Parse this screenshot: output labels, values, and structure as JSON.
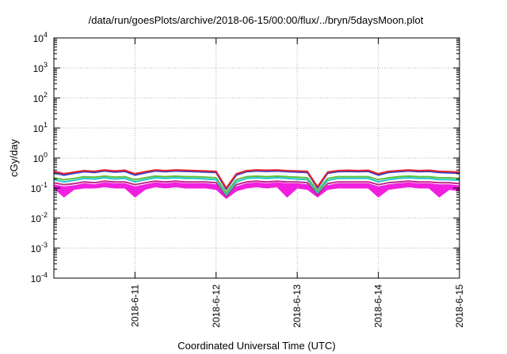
{
  "chart_data": {
    "type": "line",
    "title": "/data/run/goesPlots/archive/2018-06-15/00:00/flux/../bryn/5daysMoon.plot",
    "xlabel": "Coordinated Universal Time (UTC)",
    "ylabel": "cGy/day",
    "y_scale": "log",
    "ylim": [
      0.0001,
      10000
    ],
    "y_ticks": [
      {
        "base": "10",
        "exp": "4"
      },
      {
        "base": "10",
        "exp": "3"
      },
      {
        "base": "10",
        "exp": "2"
      },
      {
        "base": "10",
        "exp": "1"
      },
      {
        "base": "10",
        "exp": "0"
      },
      {
        "base": "10",
        "exp": "-1"
      },
      {
        "base": "10",
        "exp": "-2"
      },
      {
        "base": "10",
        "exp": "-3"
      },
      {
        "base": "10",
        "exp": "-4"
      }
    ],
    "xlim": [
      "2018-06-10",
      "2018-06-15"
    ],
    "x_ticks": [
      "2018-6-11",
      "2018-6-12",
      "2018-6-13",
      "2018-6-14",
      "2018-6-15"
    ],
    "grid": true,
    "x": [
      "2018-06-10T00:00",
      "2018-06-10T03:00",
      "2018-06-10T06:00",
      "2018-06-10T09:00",
      "2018-06-10T12:00",
      "2018-06-10T15:00",
      "2018-06-10T18:00",
      "2018-06-10T21:00",
      "2018-06-11T00:00",
      "2018-06-11T03:00",
      "2018-06-11T06:00",
      "2018-06-11T09:00",
      "2018-06-11T12:00",
      "2018-06-11T15:00",
      "2018-06-11T18:00",
      "2018-06-11T21:00",
      "2018-06-12T00:00",
      "2018-06-12T03:00",
      "2018-06-12T06:00",
      "2018-06-12T09:00",
      "2018-06-12T12:00",
      "2018-06-12T15:00",
      "2018-06-12T18:00",
      "2018-06-12T21:00",
      "2018-06-13T00:00",
      "2018-06-13T03:00",
      "2018-06-13T06:00",
      "2018-06-13T09:00",
      "2018-06-13T12:00",
      "2018-06-13T15:00",
      "2018-06-13T18:00",
      "2018-06-13T21:00",
      "2018-06-14T00:00",
      "2018-06-14T03:00",
      "2018-06-14T06:00",
      "2018-06-14T09:00",
      "2018-06-14T12:00",
      "2018-06-14T15:00",
      "2018-06-14T18:00",
      "2018-06-14T21:00",
      "2018-06-15T00:00"
    ],
    "series": [
      {
        "color": "#e8202a",
        "values": [
          0.36,
          0.3,
          0.34,
          0.38,
          0.36,
          0.4,
          0.37,
          0.39,
          0.3,
          0.35,
          0.4,
          0.38,
          0.4,
          0.39,
          0.38,
          0.37,
          0.36,
          0.1,
          0.3,
          0.38,
          0.4,
          0.39,
          0.4,
          0.38,
          0.37,
          0.36,
          0.11,
          0.34,
          0.38,
          0.39,
          0.38,
          0.39,
          0.3,
          0.36,
          0.38,
          0.4,
          0.38,
          0.39,
          0.36,
          0.35,
          0.34
        ]
      },
      {
        "color": "#2a44d8",
        "values": [
          0.32,
          0.27,
          0.31,
          0.35,
          0.33,
          0.37,
          0.34,
          0.36,
          0.27,
          0.32,
          0.37,
          0.35,
          0.37,
          0.36,
          0.35,
          0.34,
          0.33,
          0.09,
          0.27,
          0.35,
          0.37,
          0.36,
          0.37,
          0.35,
          0.34,
          0.33,
          0.1,
          0.31,
          0.35,
          0.36,
          0.35,
          0.36,
          0.27,
          0.33,
          0.35,
          0.37,
          0.35,
          0.36,
          0.33,
          0.32,
          0.31
        ]
      },
      {
        "color": "#5fbf3a",
        "values": [
          0.22,
          0.19,
          0.21,
          0.24,
          0.23,
          0.25,
          0.23,
          0.24,
          0.19,
          0.22,
          0.25,
          0.24,
          0.25,
          0.24,
          0.24,
          0.23,
          0.22,
          0.07,
          0.19,
          0.24,
          0.25,
          0.24,
          0.25,
          0.24,
          0.23,
          0.22,
          0.08,
          0.21,
          0.24,
          0.24,
          0.24,
          0.24,
          0.19,
          0.22,
          0.24,
          0.25,
          0.24,
          0.24,
          0.22,
          0.22,
          0.21
        ]
      },
      {
        "color": "#22c7cf",
        "values": [
          0.19,
          0.16,
          0.18,
          0.21,
          0.2,
          0.22,
          0.2,
          0.21,
          0.16,
          0.19,
          0.22,
          0.21,
          0.22,
          0.21,
          0.21,
          0.2,
          0.19,
          0.06,
          0.16,
          0.21,
          0.22,
          0.21,
          0.22,
          0.21,
          0.2,
          0.19,
          0.07,
          0.18,
          0.21,
          0.21,
          0.21,
          0.21,
          0.16,
          0.19,
          0.21,
          0.22,
          0.21,
          0.21,
          0.19,
          0.19,
          0.18
        ]
      },
      {
        "color": "#c2268a",
        "values": [
          0.15,
          0.13,
          0.14,
          0.16,
          0.15,
          0.17,
          0.16,
          0.16,
          0.13,
          0.15,
          0.17,
          0.16,
          0.17,
          0.16,
          0.16,
          0.16,
          0.15,
          0.05,
          0.13,
          0.16,
          0.17,
          0.16,
          0.17,
          0.16,
          0.16,
          0.15,
          0.06,
          0.14,
          0.16,
          0.16,
          0.16,
          0.16,
          0.13,
          0.15,
          0.16,
          0.17,
          0.16,
          0.16,
          0.15,
          0.15,
          0.14
        ]
      }
    ],
    "band": {
      "color": "#f21fe0",
      "upper": [
        0.13,
        0.11,
        0.12,
        0.14,
        0.13,
        0.15,
        0.14,
        0.14,
        0.11,
        0.13,
        0.15,
        0.14,
        0.15,
        0.14,
        0.14,
        0.14,
        0.13,
        0.045,
        0.11,
        0.14,
        0.15,
        0.14,
        0.15,
        0.14,
        0.14,
        0.13,
        0.055,
        0.12,
        0.14,
        0.14,
        0.14,
        0.14,
        0.11,
        0.13,
        0.14,
        0.15,
        0.14,
        0.14,
        0.13,
        0.13,
        0.12
      ],
      "lower": [
        0.1,
        0.05,
        0.09,
        0.1,
        0.1,
        0.11,
        0.1,
        0.1,
        0.05,
        0.09,
        0.11,
        0.1,
        0.11,
        0.1,
        0.1,
        0.1,
        0.09,
        0.045,
        0.08,
        0.1,
        0.11,
        0.1,
        0.11,
        0.05,
        0.1,
        0.09,
        0.05,
        0.09,
        0.1,
        0.1,
        0.1,
        0.1,
        0.05,
        0.09,
        0.1,
        0.11,
        0.1,
        0.1,
        0.05,
        0.09,
        0.08
      ]
    }
  }
}
